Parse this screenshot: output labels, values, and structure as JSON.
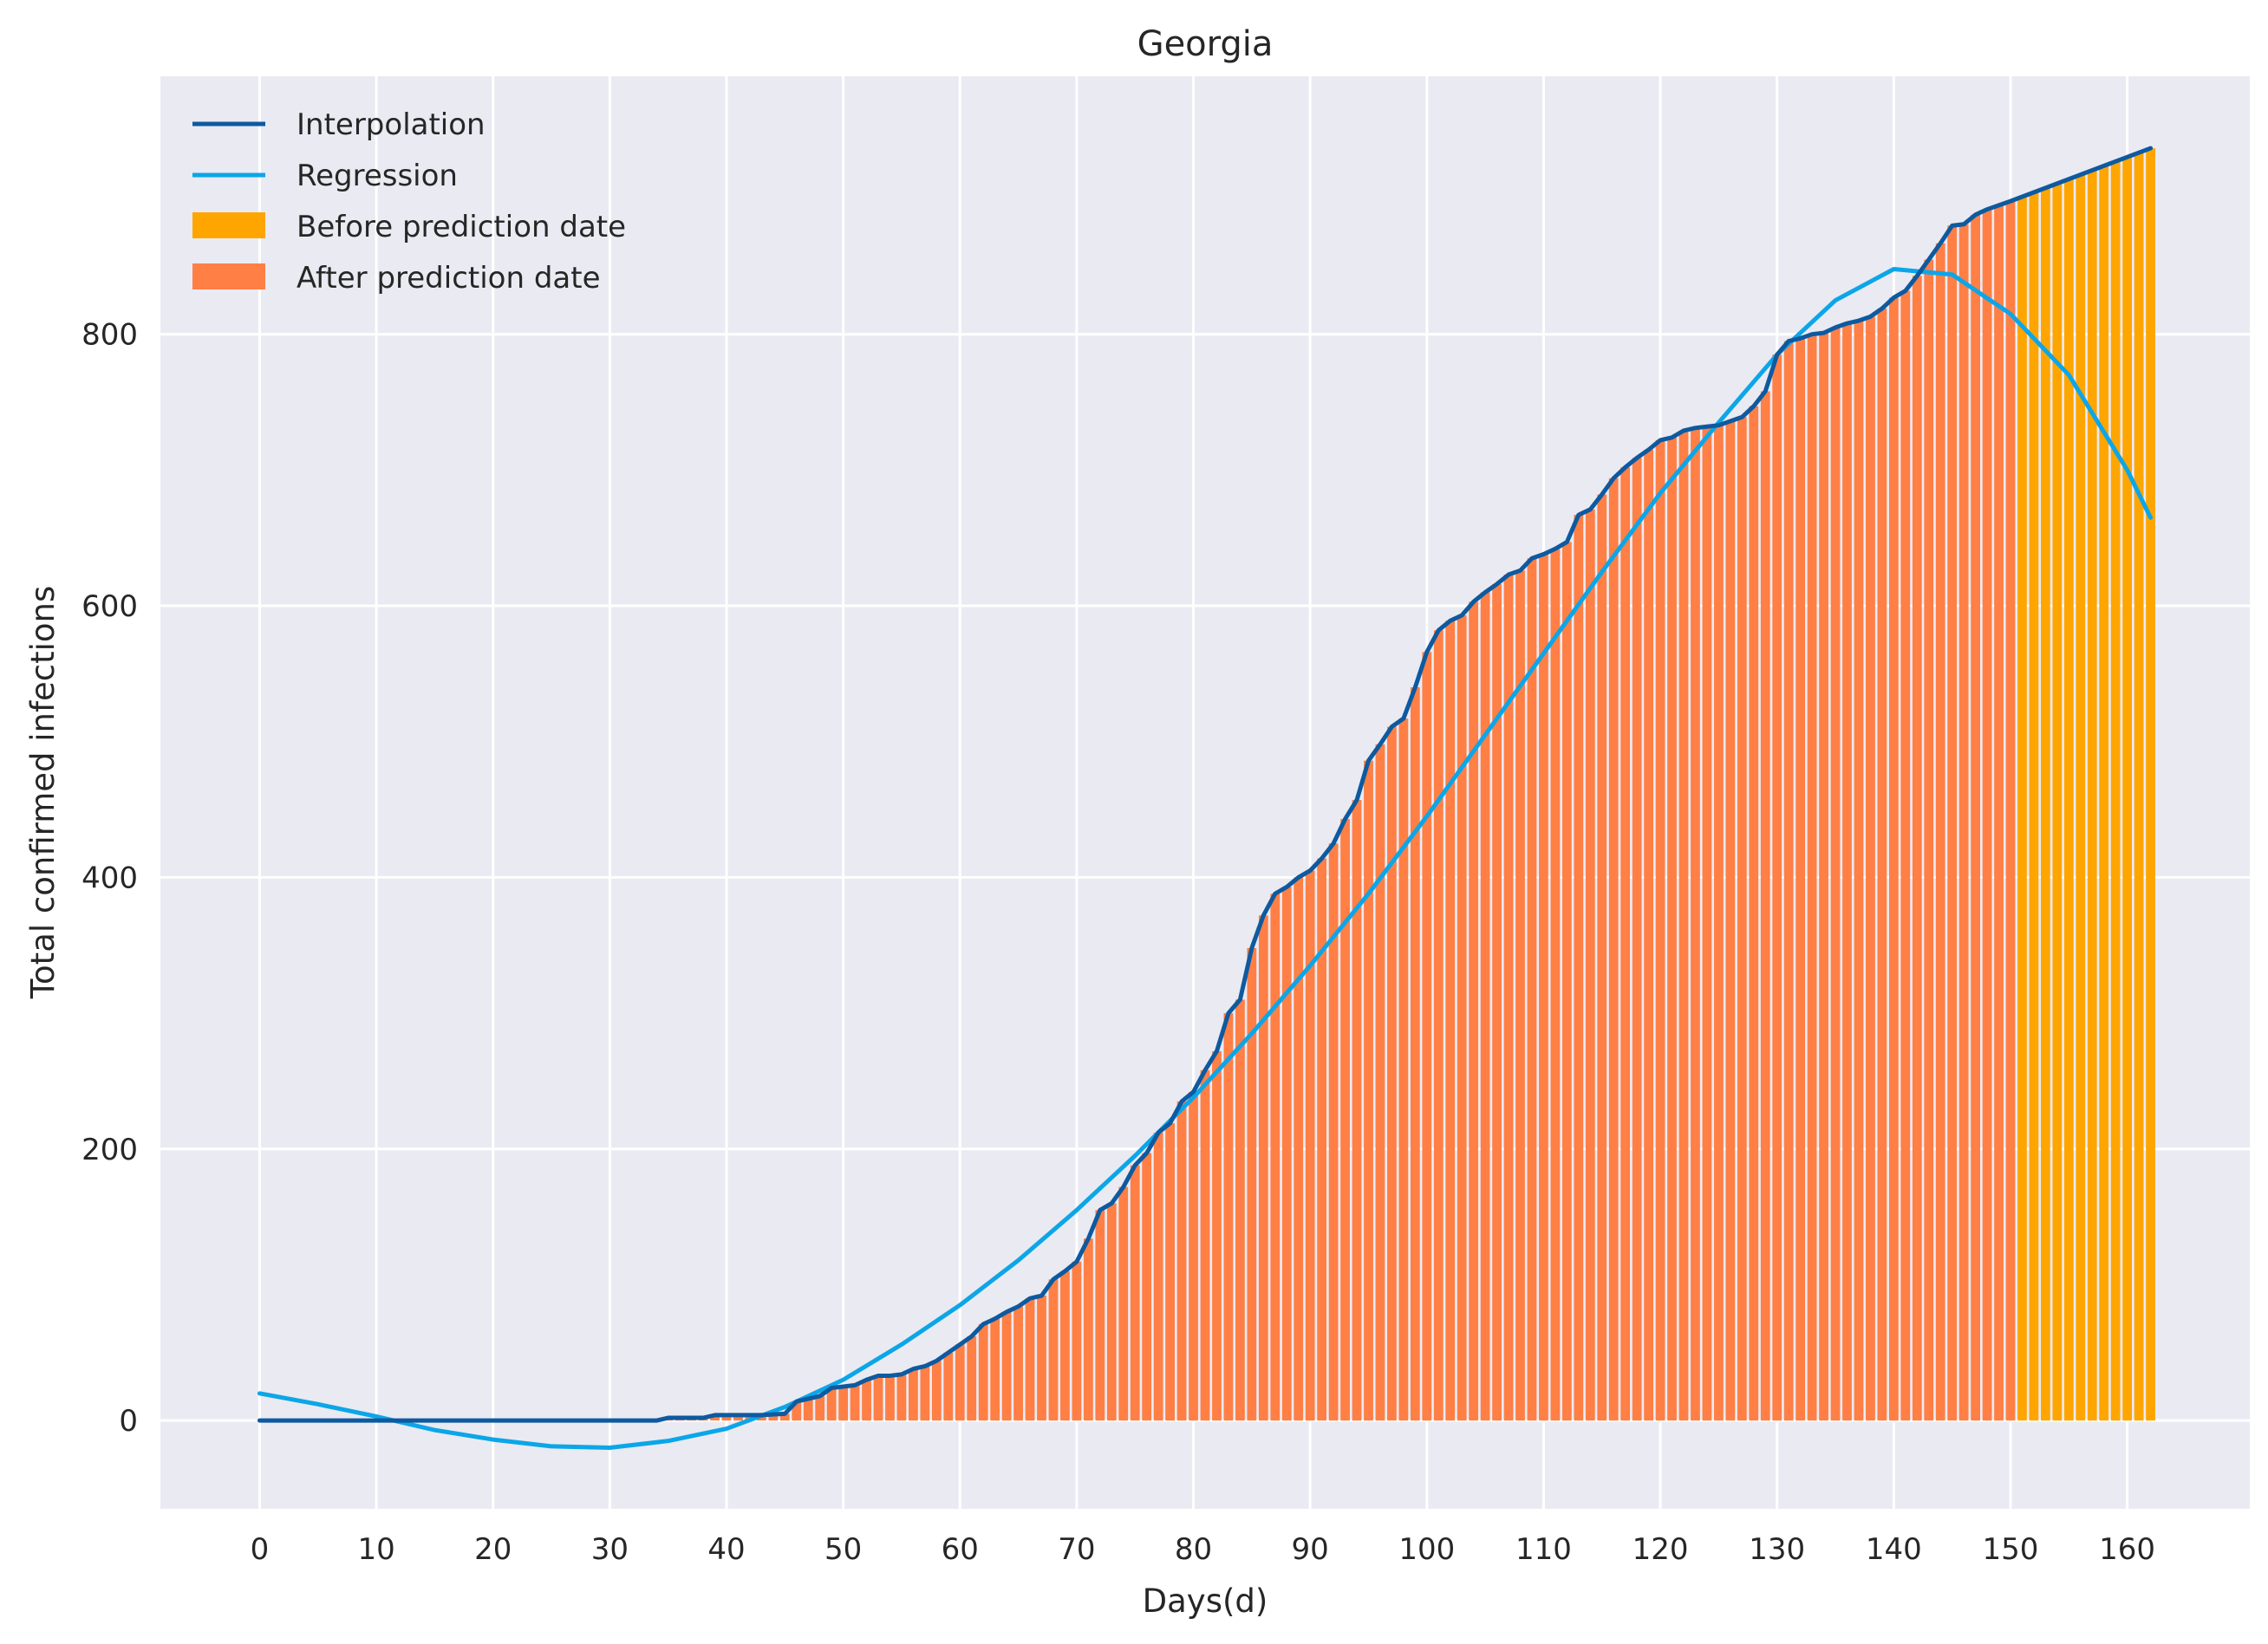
{
  "chart_data": {
    "type": "bar",
    "title": "Georgia",
    "xlabel": "Days(d)",
    "ylabel": "Total confirmed infections",
    "xlim": [
      -8.5,
      170.5
    ],
    "ylim": [
      -65,
      990
    ],
    "x_ticks": [
      0,
      10,
      20,
      30,
      40,
      50,
      60,
      70,
      80,
      90,
      100,
      110,
      120,
      130,
      140,
      150,
      160
    ],
    "y_ticks": [
      0,
      200,
      400,
      600,
      800
    ],
    "grid": true,
    "legend_position": "top-left",
    "prediction_split_day": 150,
    "colors": {
      "background": "#eaeaf2",
      "grid": "#ffffff",
      "interpolation": "#0d5aa0",
      "regression": "#0ca6e8",
      "before_prediction": "#ffa500",
      "after_prediction": "#ff7f45"
    },
    "legend": [
      {
        "label": "Interpolation",
        "kind": "line",
        "color": "#0d5aa0"
      },
      {
        "label": "Regression",
        "kind": "line",
        "color": "#0ca6e8"
      },
      {
        "label": "Before prediction date",
        "kind": "patch",
        "color": "#ffa500"
      },
      {
        "label": "After prediction date",
        "kind": "patch",
        "color": "#ff7f45"
      }
    ],
    "series": [
      {
        "name": "Interpolation",
        "kind": "line",
        "x": [
          0,
          34,
          35,
          38,
          39,
          43,
          45,
          46,
          47,
          48,
          49,
          50,
          51,
          52,
          53,
          54,
          55,
          56,
          57,
          58,
          59,
          60,
          61,
          62,
          63,
          64,
          65,
          66,
          67,
          68,
          69,
          70,
          71,
          72,
          73,
          74,
          75,
          76,
          77,
          78,
          79,
          80,
          81,
          82,
          83,
          84,
          85,
          86,
          87,
          88,
          89,
          90,
          91,
          92,
          93,
          94,
          95,
          96,
          97,
          98,
          99,
          100,
          101,
          102,
          103,
          104,
          105,
          106,
          107,
          108,
          109,
          110,
          111,
          112,
          113,
          114,
          115,
          116,
          117,
          118,
          119,
          120,
          121,
          122,
          123,
          124,
          125,
          126,
          127,
          128,
          129,
          130,
          131,
          132,
          133,
          134,
          135,
          136,
          137,
          138,
          139,
          140,
          141,
          142,
          143,
          144,
          145,
          146,
          147,
          148,
          149,
          150,
          162
        ],
        "y": [
          0,
          0,
          2,
          2,
          4,
          4,
          5,
          14,
          16,
          18,
          24,
          25,
          26,
          30,
          33,
          33,
          34,
          38,
          40,
          44,
          50,
          56,
          62,
          71,
          75,
          80,
          84,
          90,
          92,
          104,
          110,
          117,
          134,
          155,
          160,
          172,
          188,
          197,
          212,
          219,
          235,
          242,
          258,
          272,
          300,
          310,
          348,
          372,
          388,
          393,
          400,
          405,
          414,
          425,
          443,
          457,
          486,
          498,
          511,
          517,
          540,
          566,
          582,
          589,
          593,
          603,
          610,
          616,
          623,
          626,
          635,
          638,
          642,
          647,
          667,
          671,
          682,
          694,
          702,
          709,
          715,
          722,
          724,
          729,
          731,
          732,
          733,
          736,
          739,
          747,
          758,
          785,
          795,
          797,
          800,
          801,
          805,
          808,
          810,
          813,
          819,
          827,
          832,
          843,
          855,
          867,
          880,
          881,
          888,
          892,
          895,
          898,
          937
        ]
      },
      {
        "name": "Regression",
        "kind": "line",
        "x": [
          0,
          5,
          10,
          15,
          20,
          25,
          30,
          35,
          40,
          45,
          50,
          55,
          60,
          65,
          70,
          75,
          80,
          85,
          90,
          95,
          100,
          105,
          110,
          115,
          120,
          125,
          130,
          135,
          140,
          145,
          150,
          155,
          160,
          162
        ],
        "y": [
          20,
          12,
          3,
          -7,
          -14,
          -19,
          -20,
          -15,
          -6,
          10,
          30,
          56,
          85,
          118,
          155,
          195,
          238,
          285,
          335,
          388,
          445,
          505,
          565,
          625,
          683,
          735,
          785,
          825,
          848,
          844,
          815,
          770,
          700,
          665
        ]
      }
    ]
  }
}
